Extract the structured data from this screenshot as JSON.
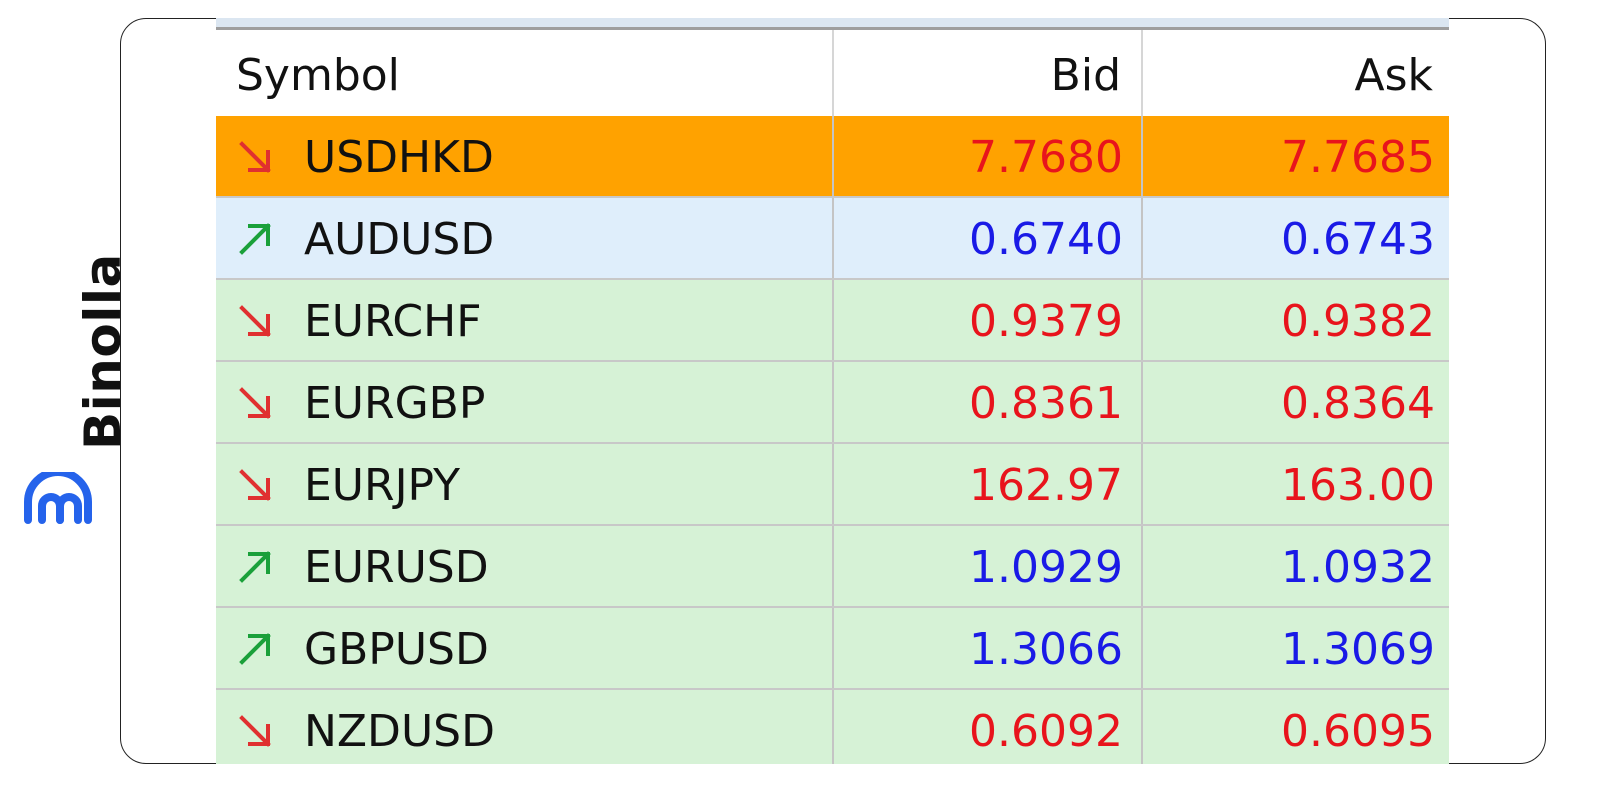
{
  "brand": {
    "name": "Binolla",
    "logo_icon": "binolla-logo-icon",
    "color": "#2563eb"
  },
  "table": {
    "headers": {
      "symbol": "Symbol",
      "bid": "Bid",
      "ask": "Ask"
    },
    "colors": {
      "selected_row_bg": "#ffa200",
      "hover_row_bg": "#dfeefb",
      "row_bg": "#d6f2d6",
      "down_price": "#e8141c",
      "up_price": "#1a1ae6",
      "down_arrow": "#e03030",
      "up_arrow": "#1aa03a"
    },
    "rows": [
      {
        "symbol": "USDHKD",
        "direction": "down",
        "arrow_icon": "arrow-down-right-icon",
        "bid": "7.7680",
        "ask": "7.7685",
        "state": "selected"
      },
      {
        "symbol": "AUDUSD",
        "direction": "up",
        "arrow_icon": "arrow-up-right-icon",
        "bid": "0.6740",
        "ask": "0.6743",
        "state": "hover"
      },
      {
        "symbol": "EURCHF",
        "direction": "down",
        "arrow_icon": "arrow-down-right-icon",
        "bid": "0.9379",
        "ask": "0.9382",
        "state": "normal"
      },
      {
        "symbol": "EURGBP",
        "direction": "down",
        "arrow_icon": "arrow-down-right-icon",
        "bid": "0.8361",
        "ask": "0.8364",
        "state": "normal"
      },
      {
        "symbol": "EURJPY",
        "direction": "down",
        "arrow_icon": "arrow-down-right-icon",
        "bid": "162.97",
        "ask": "163.00",
        "state": "normal"
      },
      {
        "symbol": "EURUSD",
        "direction": "up",
        "arrow_icon": "arrow-up-right-icon",
        "bid": "1.0929",
        "ask": "1.0932",
        "state": "normal"
      },
      {
        "symbol": "GBPUSD",
        "direction": "up",
        "arrow_icon": "arrow-up-right-icon",
        "bid": "1.3066",
        "ask": "1.3069",
        "state": "normal"
      },
      {
        "symbol": "NZDUSD",
        "direction": "down",
        "arrow_icon": "arrow-down-right-icon",
        "bid": "0.6092",
        "ask": "0.6095",
        "state": "normal"
      }
    ]
  }
}
